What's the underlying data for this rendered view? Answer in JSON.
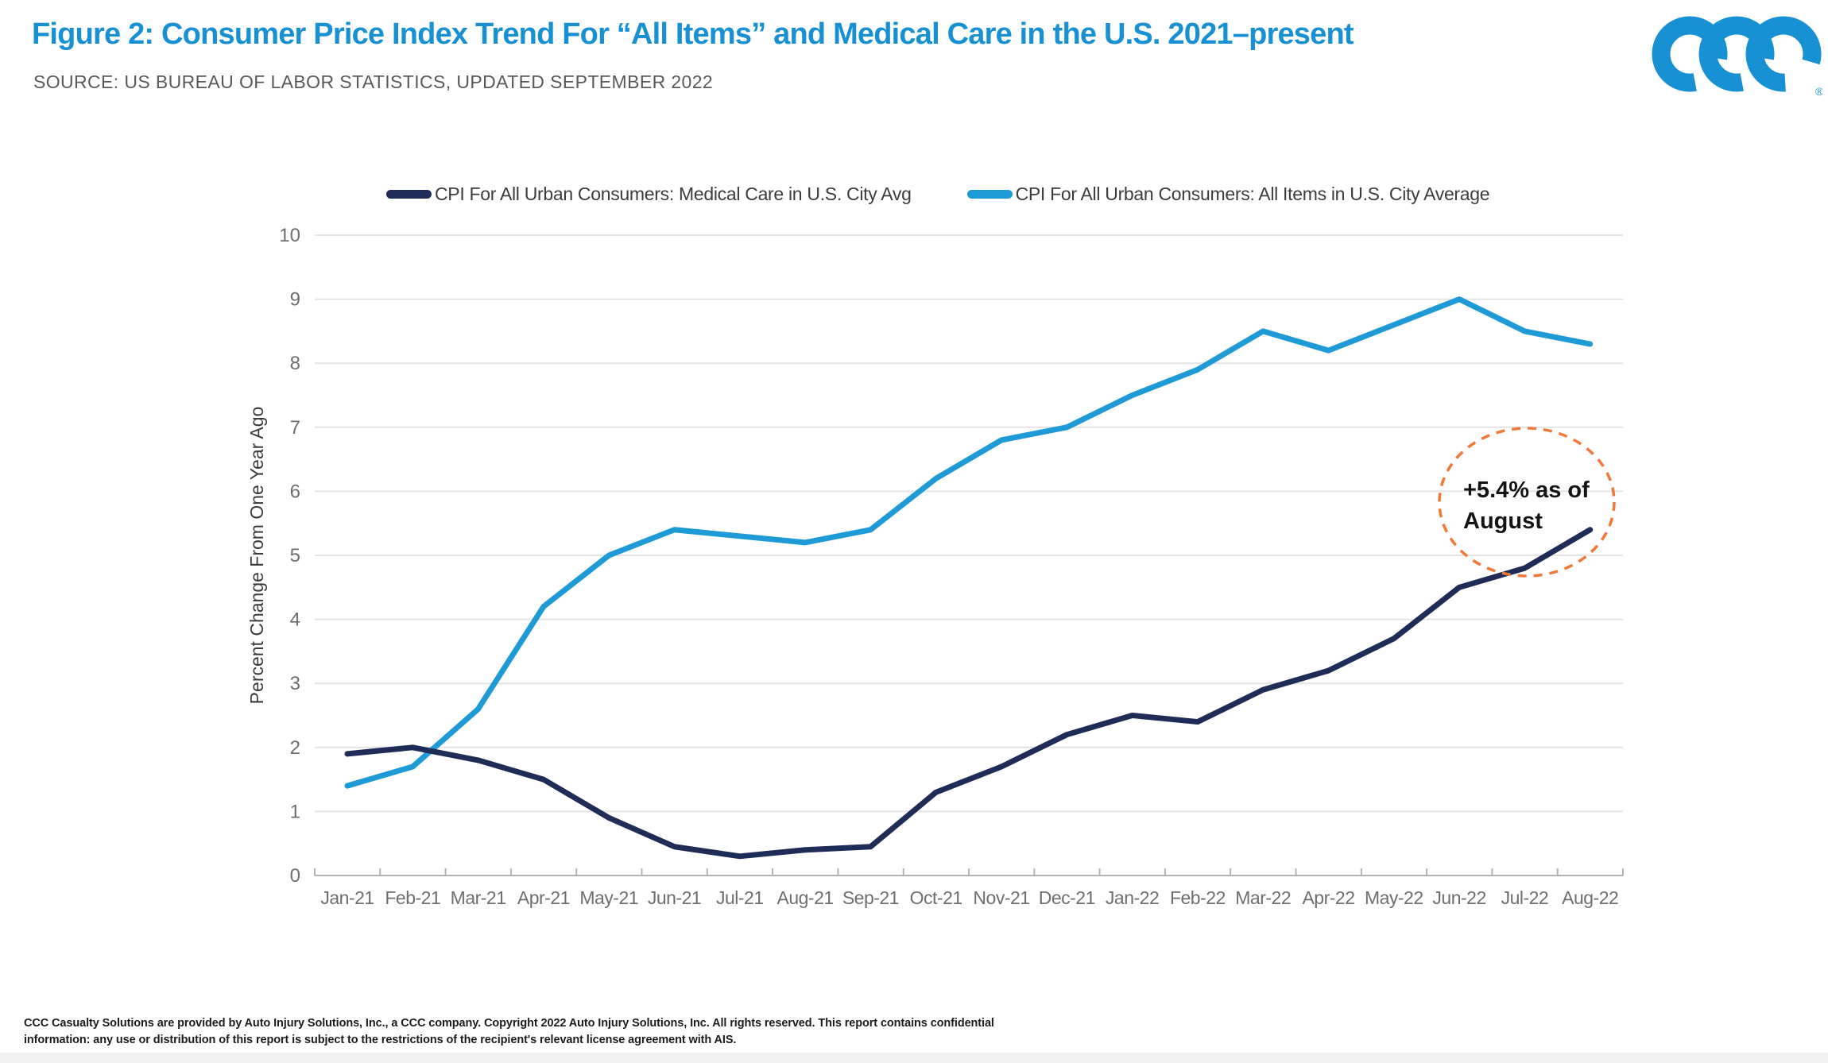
{
  "header": {
    "title": "Figure 2: Consumer Price Index Trend For “All Items” and Medical Care in the U.S. 2021–present",
    "source": "SOURCE: US BUREAU OF LABOR STATISTICS, UPDATED SEPTEMBER 2022",
    "logo_text": "CCC",
    "registered": "®"
  },
  "colors": {
    "brand_blue": "#1791d3",
    "medical_navy": "#1f2c57",
    "all_items_blue": "#1e9ad7",
    "annotation_orange": "#f0793a",
    "gridline": "#e4e4e4",
    "axis": "#b3b3b3",
    "tick_text": "#6e6e6e"
  },
  "legend": [
    {
      "label": "CPI For All Urban Consumers: Medical Care in U.S. City Avg",
      "color": "#1f2c57"
    },
    {
      "label": "CPI For All Urban Consumers: All Items in U.S. City Average",
      "color": "#1e9ad7"
    }
  ],
  "chart_data": {
    "type": "line",
    "x": [
      "Jan-21",
      "Feb-21",
      "Mar-21",
      "Apr-21",
      "May-21",
      "Jun-21",
      "Jul-21",
      "Aug-21",
      "Sep-21",
      "Oct-21",
      "Nov-21",
      "Dec-21",
      "Jan-22",
      "Feb-22",
      "Mar-22",
      "Apr-22",
      "May-22",
      "Jun-22",
      "Jul-22",
      "Aug-22"
    ],
    "series": [
      {
        "name": "CPI For All Urban Consumers: Medical Care in U.S. City Avg",
        "color": "#1f2c57",
        "values": [
          1.9,
          2.0,
          1.8,
          1.5,
          0.9,
          0.45,
          0.3,
          0.4,
          0.45,
          1.3,
          1.7,
          2.2,
          2.5,
          2.4,
          2.9,
          3.2,
          3.7,
          4.5,
          4.8,
          5.4
        ]
      },
      {
        "name": "CPI For All Urban Consumers: All Items in U.S. City Average",
        "color": "#1e9ad7",
        "values": [
          1.4,
          1.7,
          2.6,
          4.2,
          5.0,
          5.4,
          5.3,
          5.2,
          5.4,
          6.2,
          6.8,
          7.0,
          7.5,
          7.9,
          8.5,
          8.2,
          8.6,
          9.0,
          8.5,
          8.3
        ]
      }
    ],
    "ylabel": "Percent Change From One Year Ago",
    "ylim": [
      0,
      10
    ],
    "ytick_step": 1,
    "grid": "horizontal",
    "legend_position": "top-center",
    "annotation": {
      "line1": "+5.4% as of",
      "line2": "August",
      "circle_color": "#f0793a",
      "text_color": "#141414",
      "anchor_series": "Medical Care",
      "anchor_x": "Aug-22"
    }
  },
  "footer": {
    "line1": "CCC Casualty Solutions are provided by Auto Injury Solutions, Inc., a CCC company. Copyright 2022 Auto Injury Solutions, Inc. All rights reserved. This report contains confidential",
    "line2": "information: any use or distribution of this report is subject to the restrictions of the recipient's relevant license agreement with AIS."
  }
}
